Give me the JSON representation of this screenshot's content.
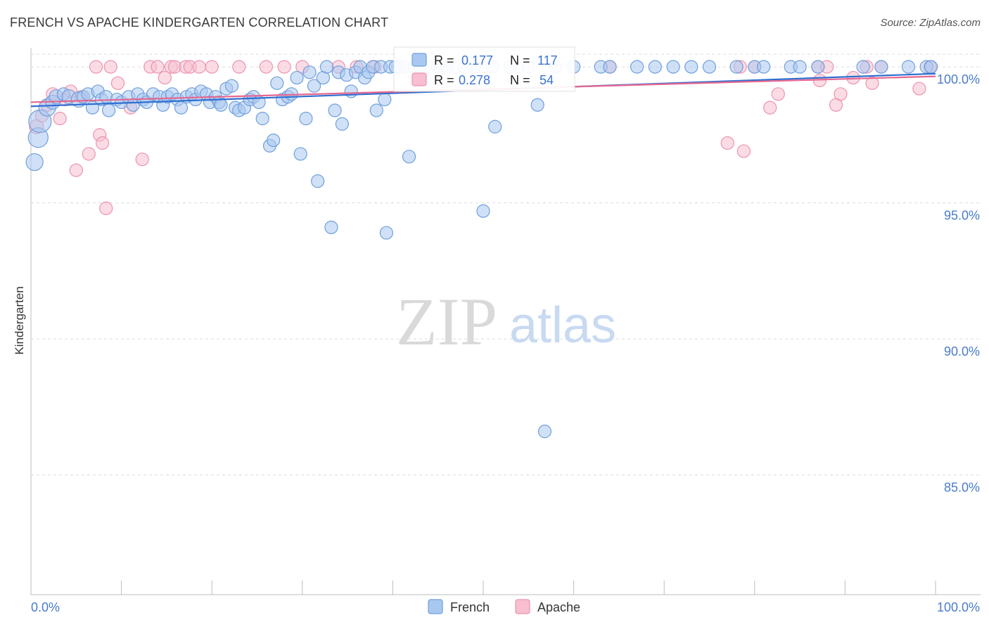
{
  "header": {
    "title": "FRENCH VS APACHE KINDERGARTEN CORRELATION CHART",
    "source": "Source: ZipAtlas.com"
  },
  "watermark": {
    "zip": "ZIP",
    "atlas": "atlas"
  },
  "colors": {
    "french_fill": "#a9c8f0",
    "french_stroke": "#6f9fdc",
    "french_line": "#2f6fd0",
    "apache_fill": "#f7bfd0",
    "apache_stroke": "#ec93b0",
    "apache_line": "#e5688f",
    "tick_label": "#4a7cc9",
    "grid": "#dcdcdc"
  },
  "legend_box": {
    "french": {
      "r_label": "R =",
      "r_value": "0.177",
      "n_label": "N =",
      "n_value": "117"
    },
    "apache": {
      "r_label": "R =",
      "r_value": "0.278",
      "n_label": "N =",
      "n_value": "54"
    }
  },
  "chart_data": {
    "type": "scatter",
    "title": "FRENCH VS APACHE KINDERGARTEN CORRELATION CHART",
    "xlabel": "",
    "ylabel": "Kindergarten",
    "xlim": [
      0,
      100
    ],
    "ylim": [
      80.6,
      100.7
    ],
    "x_tick_labels": [
      {
        "value": 0,
        "label": "0.0%"
      },
      {
        "value": 100,
        "label": "100.0%"
      }
    ],
    "y_tick_labels": [
      {
        "value": 100,
        "label": "100.0%"
      },
      {
        "value": 95,
        "label": "95.0%"
      },
      {
        "value": 90,
        "label": "90.0%"
      },
      {
        "value": 85,
        "label": "85.0%"
      }
    ],
    "legend": [
      "French",
      "Apache"
    ],
    "series": [
      {
        "name": "French",
        "r": 0.177,
        "n": 117,
        "trend": {
          "x": [
            0,
            100
          ],
          "y": [
            98.55,
            99.75
          ]
        },
        "points": [
          {
            "x": 0.4,
            "y": 96.5,
            "s": 12
          },
          {
            "x": 0.8,
            "y": 97.4,
            "s": 14
          },
          {
            "x": 1.0,
            "y": 98.0,
            "s": 16
          },
          {
            "x": 1.8,
            "y": 98.5,
            "s": 12
          },
          {
            "x": 2.4,
            "y": 98.7,
            "s": 10
          },
          {
            "x": 2.8,
            "y": 98.9,
            "s": 10
          },
          {
            "x": 3.6,
            "y": 99.0,
            "s": 9
          },
          {
            "x": 4.2,
            "y": 98.9,
            "s": 10
          },
          {
            "x": 5.3,
            "y": 98.8,
            "s": 11
          },
          {
            "x": 5.8,
            "y": 98.9,
            "s": 9
          },
          {
            "x": 6.3,
            "y": 99.0,
            "s": 9
          },
          {
            "x": 6.8,
            "y": 98.5,
            "s": 9
          },
          {
            "x": 7.4,
            "y": 99.1,
            "s": 9
          },
          {
            "x": 7.8,
            "y": 98.8,
            "s": 9
          },
          {
            "x": 8.3,
            "y": 98.9,
            "s": 9
          },
          {
            "x": 8.6,
            "y": 98.4,
            "s": 9
          },
          {
            "x": 9.5,
            "y": 98.8,
            "s": 9
          },
          {
            "x": 10.0,
            "y": 98.7,
            "s": 9
          },
          {
            "x": 10.8,
            "y": 98.9,
            "s": 9
          },
          {
            "x": 11.3,
            "y": 98.6,
            "s": 9
          },
          {
            "x": 11.8,
            "y": 99.0,
            "s": 9
          },
          {
            "x": 12.4,
            "y": 98.8,
            "s": 9
          },
          {
            "x": 12.8,
            "y": 98.7,
            "s": 9
          },
          {
            "x": 13.5,
            "y": 99.0,
            "s": 9
          },
          {
            "x": 14.2,
            "y": 98.9,
            "s": 9
          },
          {
            "x": 14.6,
            "y": 98.6,
            "s": 9
          },
          {
            "x": 15.1,
            "y": 98.9,
            "s": 9
          },
          {
            "x": 15.6,
            "y": 99.0,
            "s": 9
          },
          {
            "x": 16.2,
            "y": 98.8,
            "s": 9
          },
          {
            "x": 16.6,
            "y": 98.5,
            "s": 9
          },
          {
            "x": 17.2,
            "y": 98.9,
            "s": 9
          },
          {
            "x": 17.8,
            "y": 99.0,
            "s": 9
          },
          {
            "x": 18.2,
            "y": 98.8,
            "s": 9
          },
          {
            "x": 18.8,
            "y": 99.1,
            "s": 9
          },
          {
            "x": 19.4,
            "y": 99.0,
            "s": 9
          },
          {
            "x": 19.8,
            "y": 98.7,
            "s": 9
          },
          {
            "x": 20.4,
            "y": 98.9,
            "s": 9
          },
          {
            "x": 20.8,
            "y": 98.7,
            "s": 9
          },
          {
            "x": 21.6,
            "y": 99.2,
            "s": 9
          },
          {
            "x": 22.2,
            "y": 99.3,
            "s": 9
          },
          {
            "x": 22.6,
            "y": 98.5,
            "s": 9
          },
          {
            "x": 23.0,
            "y": 98.4,
            "s": 9
          },
          {
            "x": 23.6,
            "y": 98.5,
            "s": 9
          },
          {
            "x": 24.2,
            "y": 98.8,
            "s": 9
          },
          {
            "x": 24.6,
            "y": 98.9,
            "s": 9
          },
          {
            "x": 25.2,
            "y": 98.7,
            "s": 9
          },
          {
            "x": 25.6,
            "y": 98.1,
            "s": 9
          },
          {
            "x": 26.4,
            "y": 97.1,
            "s": 9
          },
          {
            "x": 26.8,
            "y": 97.3,
            "s": 9
          },
          {
            "x": 27.2,
            "y": 99.4,
            "s": 9
          },
          {
            "x": 27.8,
            "y": 98.8,
            "s": 9
          },
          {
            "x": 28.4,
            "y": 98.9,
            "s": 9
          },
          {
            "x": 28.8,
            "y": 99.0,
            "s": 9
          },
          {
            "x": 29.4,
            "y": 99.6,
            "s": 9
          },
          {
            "x": 29.8,
            "y": 96.8,
            "s": 9
          },
          {
            "x": 30.4,
            "y": 98.1,
            "s": 9
          },
          {
            "x": 30.8,
            "y": 99.8,
            "s": 9
          },
          {
            "x": 31.3,
            "y": 99.3,
            "s": 9
          },
          {
            "x": 31.7,
            "y": 95.8,
            "s": 9
          },
          {
            "x": 32.3,
            "y": 99.6,
            "s": 9
          },
          {
            "x": 32.7,
            "y": 100.0,
            "s": 9
          },
          {
            "x": 33.2,
            "y": 94.1,
            "s": 9
          },
          {
            "x": 33.6,
            "y": 98.4,
            "s": 9
          },
          {
            "x": 34.0,
            "y": 99.8,
            "s": 9
          },
          {
            "x": 34.4,
            "y": 97.9,
            "s": 9
          },
          {
            "x": 34.9,
            "y": 99.7,
            "s": 9
          },
          {
            "x": 35.4,
            "y": 99.1,
            "s": 9
          },
          {
            "x": 35.9,
            "y": 99.8,
            "s": 9
          },
          {
            "x": 36.4,
            "y": 100.0,
            "s": 9
          },
          {
            "x": 36.9,
            "y": 99.6,
            "s": 9
          },
          {
            "x": 37.3,
            "y": 99.8,
            "s": 9
          },
          {
            "x": 37.8,
            "y": 100.0,
            "s": 9
          },
          {
            "x": 38.2,
            "y": 98.4,
            "s": 9
          },
          {
            "x": 38.7,
            "y": 100.0,
            "s": 9
          },
          {
            "x": 39.1,
            "y": 98.8,
            "s": 9
          },
          {
            "x": 39.3,
            "y": 93.9,
            "s": 9
          },
          {
            "x": 39.7,
            "y": 100.0,
            "s": 9
          },
          {
            "x": 40.3,
            "y": 100.0,
            "s": 9
          },
          {
            "x": 40.8,
            "y": 100.0,
            "s": 9
          },
          {
            "x": 41.3,
            "y": 100.0,
            "s": 9
          },
          {
            "x": 41.8,
            "y": 96.7,
            "s": 9
          },
          {
            "x": 42.4,
            "y": 100.0,
            "s": 9
          },
          {
            "x": 43.0,
            "y": 100.0,
            "s": 9
          },
          {
            "x": 44.0,
            "y": 100.0,
            "s": 9
          },
          {
            "x": 45.0,
            "y": 100.0,
            "s": 9
          },
          {
            "x": 46.0,
            "y": 100.0,
            "s": 9
          },
          {
            "x": 47.0,
            "y": 100.0,
            "s": 9
          },
          {
            "x": 48.0,
            "y": 100.0,
            "s": 9
          },
          {
            "x": 49.0,
            "y": 100.0,
            "s": 9
          },
          {
            "x": 50.0,
            "y": 94.7,
            "s": 9
          },
          {
            "x": 51.0,
            "y": 100.0,
            "s": 9
          },
          {
            "x": 51.3,
            "y": 97.8,
            "s": 9
          },
          {
            "x": 53.0,
            "y": 100.0,
            "s": 9
          },
          {
            "x": 55.0,
            "y": 100.0,
            "s": 9
          },
          {
            "x": 56.0,
            "y": 98.6,
            "s": 9
          },
          {
            "x": 56.8,
            "y": 86.6,
            "s": 9
          },
          {
            "x": 58.0,
            "y": 100.0,
            "s": 9
          },
          {
            "x": 60.0,
            "y": 100.0,
            "s": 9
          },
          {
            "x": 63.0,
            "y": 100.0,
            "s": 9
          },
          {
            "x": 64.0,
            "y": 100.0,
            "s": 9
          },
          {
            "x": 67.0,
            "y": 100.0,
            "s": 9
          },
          {
            "x": 69.0,
            "y": 100.0,
            "s": 9
          },
          {
            "x": 71.0,
            "y": 100.0,
            "s": 9
          },
          {
            "x": 73.0,
            "y": 100.0,
            "s": 9
          },
          {
            "x": 75.0,
            "y": 100.0,
            "s": 9
          },
          {
            "x": 78.0,
            "y": 100.0,
            "s": 9
          },
          {
            "x": 80.0,
            "y": 100.0,
            "s": 9
          },
          {
            "x": 81.0,
            "y": 100.0,
            "s": 9
          },
          {
            "x": 84.0,
            "y": 100.0,
            "s": 9
          },
          {
            "x": 85.0,
            "y": 100.0,
            "s": 9
          },
          {
            "x": 87.0,
            "y": 100.0,
            "s": 9
          },
          {
            "x": 92.0,
            "y": 100.0,
            "s": 9
          },
          {
            "x": 94.0,
            "y": 100.0,
            "s": 9
          },
          {
            "x": 97.0,
            "y": 100.0,
            "s": 9
          },
          {
            "x": 99.0,
            "y": 100.0,
            "s": 9
          },
          {
            "x": 99.5,
            "y": 100.0,
            "s": 9
          },
          {
            "x": 21.0,
            "y": 98.6,
            "s": 9
          }
        ]
      },
      {
        "name": "Apache",
        "r": 0.278,
        "n": 54,
        "trend": {
          "x": [
            0,
            100
          ],
          "y": [
            98.7,
            99.65
          ]
        },
        "points": [
          {
            "x": 0.6,
            "y": 97.8,
            "s": 10
          },
          {
            "x": 1.2,
            "y": 98.2,
            "s": 9
          },
          {
            "x": 1.8,
            "y": 98.6,
            "s": 9
          },
          {
            "x": 2.4,
            "y": 99.0,
            "s": 9
          },
          {
            "x": 3.2,
            "y": 98.1,
            "s": 9
          },
          {
            "x": 3.8,
            "y": 98.8,
            "s": 9
          },
          {
            "x": 4.4,
            "y": 99.1,
            "s": 9
          },
          {
            "x": 5.0,
            "y": 96.2,
            "s": 9
          },
          {
            "x": 5.6,
            "y": 98.9,
            "s": 9
          },
          {
            "x": 6.4,
            "y": 96.8,
            "s": 9
          },
          {
            "x": 7.2,
            "y": 100.0,
            "s": 9
          },
          {
            "x": 7.6,
            "y": 97.5,
            "s": 9
          },
          {
            "x": 7.9,
            "y": 97.2,
            "s": 9
          },
          {
            "x": 8.3,
            "y": 94.8,
            "s": 9
          },
          {
            "x": 8.8,
            "y": 100.0,
            "s": 9
          },
          {
            "x": 9.6,
            "y": 99.4,
            "s": 9
          },
          {
            "x": 11.0,
            "y": 98.5,
            "s": 9
          },
          {
            "x": 12.3,
            "y": 96.6,
            "s": 9
          },
          {
            "x": 13.2,
            "y": 100.0,
            "s": 9
          },
          {
            "x": 14.0,
            "y": 100.0,
            "s": 9
          },
          {
            "x": 14.8,
            "y": 99.6,
            "s": 9
          },
          {
            "x": 15.5,
            "y": 100.0,
            "s": 9
          },
          {
            "x": 15.9,
            "y": 100.0,
            "s": 9
          },
          {
            "x": 17.1,
            "y": 100.0,
            "s": 9
          },
          {
            "x": 17.6,
            "y": 100.0,
            "s": 9
          },
          {
            "x": 18.6,
            "y": 100.0,
            "s": 9
          },
          {
            "x": 20.0,
            "y": 100.0,
            "s": 9
          },
          {
            "x": 23.0,
            "y": 100.0,
            "s": 9
          },
          {
            "x": 26.0,
            "y": 100.0,
            "s": 9
          },
          {
            "x": 28.0,
            "y": 100.0,
            "s": 9
          },
          {
            "x": 30.0,
            "y": 100.0,
            "s": 9
          },
          {
            "x": 34.0,
            "y": 100.0,
            "s": 9
          },
          {
            "x": 36.0,
            "y": 100.0,
            "s": 9
          },
          {
            "x": 38.0,
            "y": 100.0,
            "s": 9
          },
          {
            "x": 45.0,
            "y": 100.0,
            "s": 9
          },
          {
            "x": 50.0,
            "y": 100.0,
            "s": 9
          },
          {
            "x": 64.0,
            "y": 100.0,
            "s": 9
          },
          {
            "x": 77.0,
            "y": 97.2,
            "s": 9
          },
          {
            "x": 78.4,
            "y": 100.0,
            "s": 9
          },
          {
            "x": 78.8,
            "y": 96.9,
            "s": 9
          },
          {
            "x": 80.0,
            "y": 100.0,
            "s": 9
          },
          {
            "x": 81.7,
            "y": 98.5,
            "s": 9
          },
          {
            "x": 82.6,
            "y": 99.0,
            "s": 9
          },
          {
            "x": 87.0,
            "y": 100.0,
            "s": 9
          },
          {
            "x": 87.2,
            "y": 99.5,
            "s": 9
          },
          {
            "x": 88.0,
            "y": 100.0,
            "s": 9
          },
          {
            "x": 89.0,
            "y": 98.6,
            "s": 9
          },
          {
            "x": 89.5,
            "y": 99.0,
            "s": 9
          },
          {
            "x": 90.9,
            "y": 99.6,
            "s": 9
          },
          {
            "x": 92.4,
            "y": 100.0,
            "s": 9
          },
          {
            "x": 93.0,
            "y": 99.4,
            "s": 9
          },
          {
            "x": 94.0,
            "y": 100.0,
            "s": 9
          },
          {
            "x": 98.2,
            "y": 99.2,
            "s": 9
          },
          {
            "x": 99.4,
            "y": 100.0,
            "s": 9
          }
        ]
      }
    ]
  }
}
